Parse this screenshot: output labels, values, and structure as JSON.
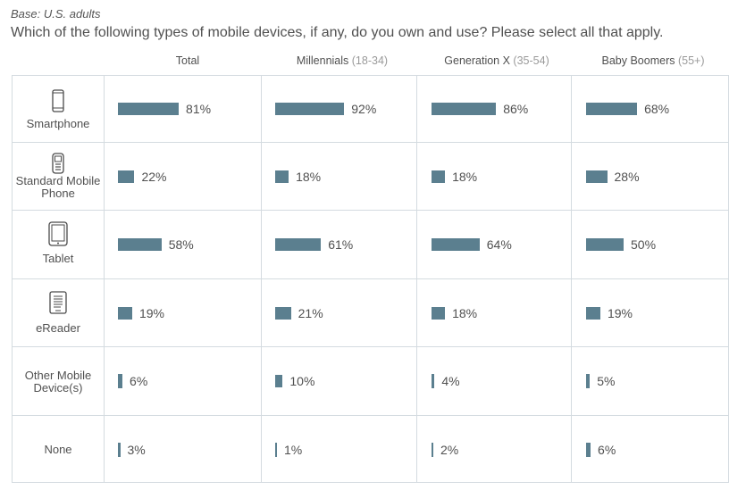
{
  "header": {
    "base": "Base: U.S. adults",
    "question": "Which of the following types of mobile devices, if any, do you own and use? Please select all that apply."
  },
  "columns": [
    {
      "name": "Total",
      "sub": ""
    },
    {
      "name": "Millennials",
      "sub": "(18-34)"
    },
    {
      "name": "Generation X",
      "sub": "(35-54)"
    },
    {
      "name": "Baby Boomers",
      "sub": "(55+)"
    }
  ],
  "rows": [
    {
      "label": "Smartphone",
      "icon": "smartphone-icon"
    },
    {
      "label": "Standard Mobile Phone",
      "icon": "mobile-phone-icon"
    },
    {
      "label": "Tablet",
      "icon": "tablet-icon"
    },
    {
      "label": "eReader",
      "icon": "ereader-icon"
    },
    {
      "label": "Other Mobile Device(s)",
      "icon": ""
    },
    {
      "label": "None",
      "icon": ""
    }
  ],
  "colors": {
    "bar": "#5b7f8f",
    "grid": "#d4dbe0",
    "icon": "#4a4a4a"
  },
  "chart_data": {
    "type": "bar",
    "orientation": "horizontal",
    "categories": [
      "Smartphone",
      "Standard Mobile Phone",
      "Tablet",
      "eReader",
      "Other Mobile Device(s)",
      "None"
    ],
    "series": [
      {
        "name": "Total",
        "values": [
          81,
          22,
          58,
          19,
          6,
          3
        ]
      },
      {
        "name": "Millennials (18-34)",
        "values": [
          92,
          18,
          61,
          21,
          10,
          1
        ]
      },
      {
        "name": "Generation X (35-54)",
        "values": [
          86,
          18,
          64,
          18,
          4,
          2
        ]
      },
      {
        "name": "Baby Boomers (55+)",
        "values": [
          68,
          28,
          50,
          19,
          5,
          6
        ]
      }
    ],
    "value_suffix": "%",
    "xlim": [
      0,
      100
    ]
  }
}
